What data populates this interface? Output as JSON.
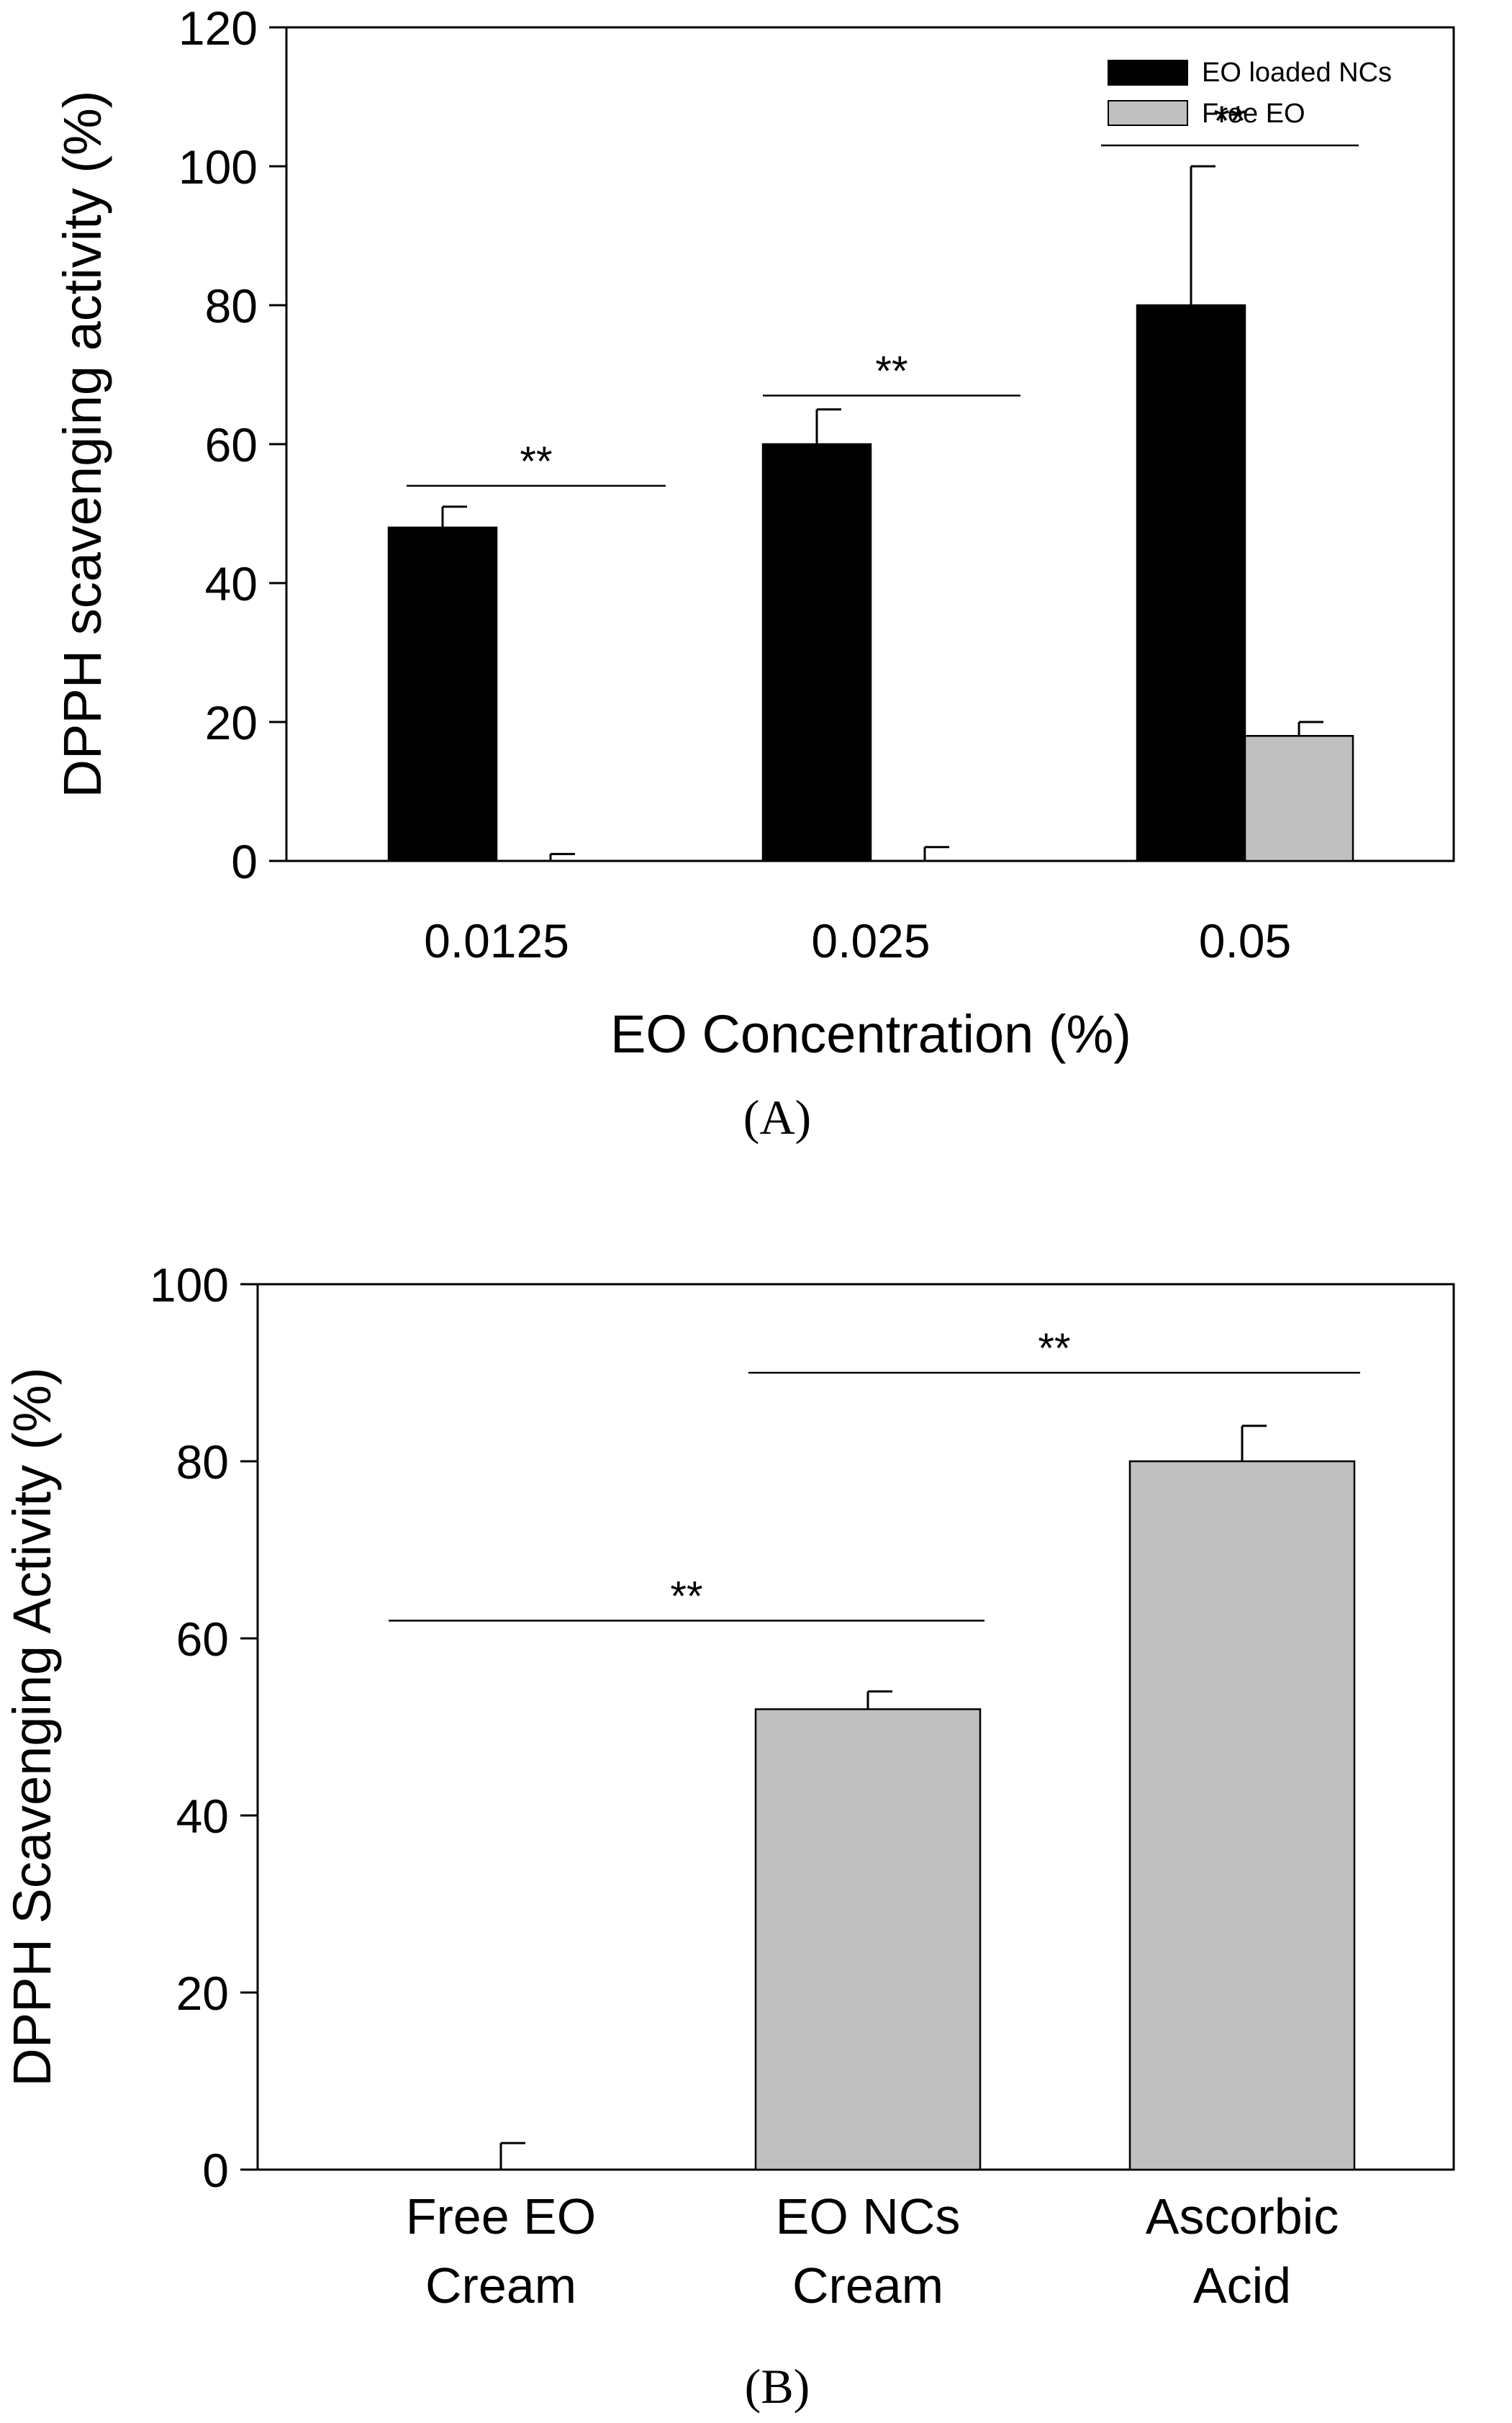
{
  "chart_data": [
    {
      "type": "bar",
      "panel_label": "A",
      "panel_label_text": "(A)",
      "title": "",
      "xlabel": "EO Concentration (%)",
      "ylabel": "DPPH scavenging activity (%)",
      "ylim": [
        0,
        120
      ],
      "yticks": [
        0,
        20,
        40,
        60,
        80,
        100,
        120
      ],
      "ytick_labels": [
        "0",
        "20",
        "40",
        "60",
        "80",
        "100",
        "120"
      ],
      "grid": false,
      "legend_position": "top-right",
      "categories": [
        "0.0125",
        "0.025",
        "0.05"
      ],
      "series": [
        {
          "name": "EO loaded NCs",
          "color": "#000000",
          "values": [
            48,
            60,
            80
          ],
          "errors": [
            3,
            5,
            20
          ]
        },
        {
          "name": "Free EO",
          "color": "#c0c0c0",
          "values": [
            0,
            0,
            18
          ],
          "errors": [
            1,
            2,
            2
          ]
        }
      ],
      "significance": [
        {
          "label": "**",
          "from_category": 0,
          "to_category": 0,
          "y": 54
        },
        {
          "label": "**",
          "from_category": 1,
          "to_category": 1,
          "y": 67
        },
        {
          "label": "**",
          "from_category": 2,
          "to_category": 2,
          "y": 103
        }
      ]
    },
    {
      "type": "bar",
      "panel_label": "B",
      "panel_label_text": "(B)",
      "title": "",
      "xlabel": "",
      "ylabel": "DPPH Scavenging Activity (%)",
      "ylim": [
        0,
        100
      ],
      "yticks": [
        0,
        20,
        40,
        60,
        80,
        100
      ],
      "ytick_labels": [
        "0",
        "20",
        "40",
        "60",
        "80",
        "100"
      ],
      "grid": false,
      "categories": [
        [
          "Free EO",
          "Cream"
        ],
        [
          "EO NCs",
          "Cream"
        ],
        [
          "Ascorbic",
          "Acid"
        ]
      ],
      "series": [
        {
          "name": "DPPH Scavenging Activity",
          "color": "#c0c0c0",
          "values": [
            0,
            52,
            80
          ],
          "errors": [
            3,
            2,
            4
          ]
        }
      ],
      "significance": [
        {
          "label": "**",
          "from_category": 0,
          "to_category": 1,
          "y": 62
        },
        {
          "label": "**",
          "from_category": 1,
          "to_category": 2,
          "y": 90
        }
      ]
    }
  ]
}
